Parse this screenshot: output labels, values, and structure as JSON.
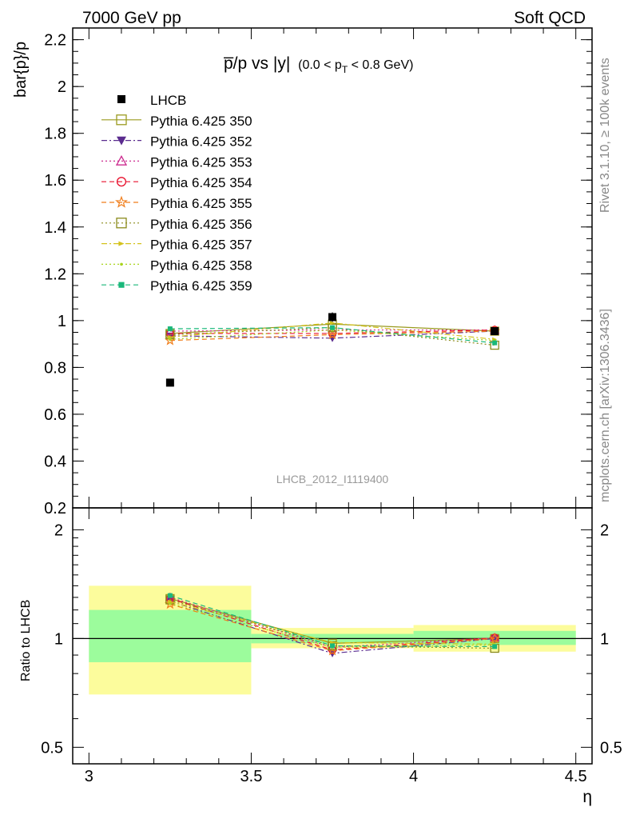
{
  "header": {
    "left": "7000 GeV pp",
    "right": "Soft QCD"
  },
  "side_labels": {
    "top": "Rivet 3.1.10, ≥ 100k events",
    "bottom": "mcplots.cern.ch [arXiv:1306.3436]"
  },
  "watermark": "LHCB_2012_I1119400",
  "chart_data": [
    {
      "type": "scatter",
      "panel": "main",
      "title_main": "p̅/p vs |y|",
      "title_sub_pre": "(0.0 < p",
      "title_sub_sub": "T",
      "title_sub_post": " < 0.8 GeV)",
      "ylabel": "bar{p}/p",
      "xlabel": "",
      "ylim": [
        0.2,
        2.25
      ],
      "xlim": [
        2.95,
        4.55
      ],
      "y_ticks": [
        0.2,
        0.4,
        0.6,
        0.8,
        1,
        1.2,
        1.4,
        1.6,
        1.8,
        2,
        2.2
      ],
      "y_tick_labels": [
        "0.2",
        "0.4",
        "0.6",
        "0.8",
        "1",
        "1.2",
        "1.4",
        "1.6",
        "1.8",
        "2",
        "2.2"
      ],
      "x": [
        3.25,
        3.75,
        4.25
      ],
      "legend_position": "top-left",
      "data": {
        "name": "LHCB",
        "color": "#000000",
        "marker": "filled-square",
        "x": [
          3.25,
          3.75,
          4.25
        ],
        "values": [
          0.735,
          1.015,
          0.955
        ],
        "yerr": [
          0.01,
          0.02,
          0.01
        ]
      },
      "series": [
        {
          "name": "Pythia 6.425 350",
          "color": "#9a9a1e",
          "marker": "open-square",
          "dash": "solid",
          "values": [
            0.945,
            0.985,
            0.955
          ]
        },
        {
          "name": "Pythia 6.425 352",
          "color": "#5b2c8f",
          "marker": "filled-triangle-down",
          "dash": "dashdot",
          "values": [
            0.935,
            0.925,
            0.955
          ]
        },
        {
          "name": "Pythia 6.425 353",
          "color": "#cc2a8f",
          "marker": "open-triangle-up",
          "dash": "dotted",
          "values": [
            0.955,
            0.96,
            0.96
          ]
        },
        {
          "name": "Pythia 6.425 354",
          "color": "#e8112d",
          "marker": "open-circle",
          "dash": "dashed",
          "values": [
            0.945,
            0.945,
            0.96
          ]
        },
        {
          "name": "Pythia 6.425 355",
          "color": "#f07d1a",
          "marker": "open-star",
          "dash": "dashed",
          "values": [
            0.915,
            0.94,
            0.955
          ]
        },
        {
          "name": "Pythia 6.425 356",
          "color": "#8a8a1a",
          "marker": "open-square",
          "dash": "dotted",
          "values": [
            0.94,
            0.97,
            0.895
          ]
        },
        {
          "name": "Pythia 6.425 357",
          "color": "#d4c21c",
          "marker": "filled-triangle-right",
          "dash": "dashdot",
          "values": [
            0.93,
            0.99,
            0.92
          ]
        },
        {
          "name": "Pythia 6.425 358",
          "color": "#a8d41c",
          "marker": "small-dot",
          "dash": "dotted",
          "values": [
            0.92,
            0.96,
            0.915
          ]
        },
        {
          "name": "Pythia 6.425 359",
          "color": "#1ab87a",
          "marker": "filled-square-small",
          "dash": "dashed",
          "values": [
            0.965,
            0.97,
            0.905
          ]
        }
      ]
    },
    {
      "type": "line",
      "panel": "ratio",
      "ylabel": "Ratio to LHCB",
      "xlabel": "η",
      "ylim": [
        0.45,
        2.3
      ],
      "xlim": [
        2.95,
        4.55
      ],
      "log_y": true,
      "y_ticks": [
        0.5,
        1,
        2
      ],
      "y_tick_labels": [
        "0.5",
        "1",
        "2"
      ],
      "x_ticks": [
        3,
        3.5,
        4,
        4.5
      ],
      "x_tick_labels": [
        "3",
        "3.5",
        "4",
        "4.5"
      ],
      "reference": 1,
      "bands": [
        {
          "x_range": [
            3.0,
            3.5
          ],
          "stat": [
            0.86,
            1.2
          ],
          "total": [
            0.7,
            1.4
          ]
        },
        {
          "x_range": [
            3.5,
            4.0
          ],
          "stat": [
            0.97,
            1.03
          ],
          "total": [
            0.94,
            1.07
          ]
        },
        {
          "x_range": [
            4.0,
            4.5
          ],
          "stat": [
            0.96,
            1.05
          ],
          "total": [
            0.92,
            1.09
          ]
        }
      ],
      "band_colors": {
        "stat": "#9cfc9c",
        "total": "#fcfc9c"
      },
      "x": [
        3.25,
        3.75,
        4.25
      ],
      "series": [
        {
          "name": "Pythia 6.425 350",
          "values": [
            1.29,
            0.97,
            1.0
          ]
        },
        {
          "name": "Pythia 6.425 352",
          "values": [
            1.27,
            0.91,
            1.0
          ]
        },
        {
          "name": "Pythia 6.425 353",
          "values": [
            1.3,
            0.945,
            1.005
          ]
        },
        {
          "name": "Pythia 6.425 354",
          "values": [
            1.29,
            0.93,
            1.005
          ]
        },
        {
          "name": "Pythia 6.425 355",
          "values": [
            1.245,
            0.925,
            1.0
          ]
        },
        {
          "name": "Pythia 6.425 356",
          "values": [
            1.28,
            0.955,
            0.94
          ]
        },
        {
          "name": "Pythia 6.425 357",
          "values": [
            1.265,
            0.975,
            0.965
          ]
        },
        {
          "name": "Pythia 6.425 358",
          "values": [
            1.25,
            0.945,
            0.96
          ]
        },
        {
          "name": "Pythia 6.425 359",
          "values": [
            1.315,
            0.955,
            0.95
          ]
        }
      ]
    }
  ]
}
